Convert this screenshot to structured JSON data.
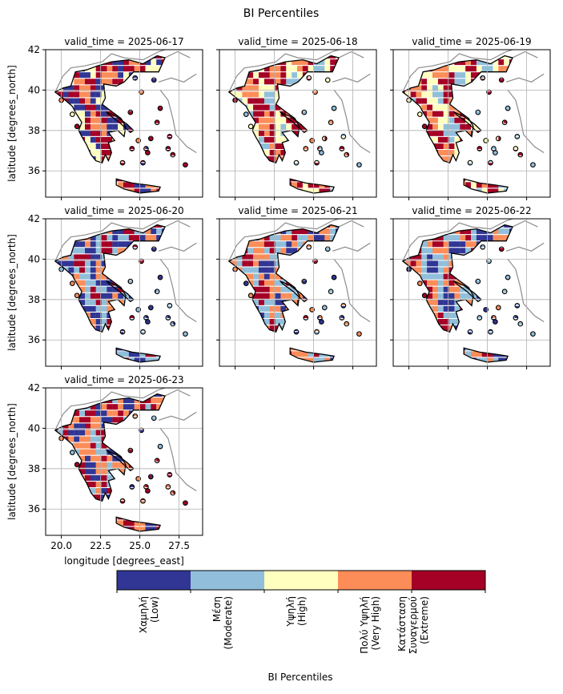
{
  "figure": {
    "title": "BI Percentiles",
    "colorbar_label": "BI Percentiles"
  },
  "chart_data": {
    "type": "heatmap",
    "title": "BI Percentiles",
    "xlabel": "longitude [degrees_east]",
    "ylabel": "latitude [degrees_north]",
    "xlim": [
      19.0,
      29.0
    ],
    "ylim": [
      34.7,
      42.0
    ],
    "xticks": [
      "20.0",
      "22.5",
      "25.0",
      "27.5"
    ],
    "yticks": [
      "36",
      "38",
      "40",
      "42"
    ],
    "grid": true,
    "panels": [
      {
        "label": "valid_time = 2025-06-17",
        "dominant": [
          3,
          4,
          0,
          2
        ]
      },
      {
        "label": "valid_time = 2025-06-18",
        "dominant": [
          3,
          4,
          2,
          1
        ]
      },
      {
        "label": "valid_time = 2025-06-19",
        "dominant": [
          3,
          4,
          2,
          1
        ]
      },
      {
        "label": "valid_time = 2025-06-20",
        "dominant": [
          3,
          0,
          1,
          4
        ]
      },
      {
        "label": "valid_time = 2025-06-21",
        "dominant": [
          0,
          3,
          1,
          4
        ]
      },
      {
        "label": "valid_time = 2025-06-22",
        "dominant": [
          0,
          1,
          3,
          4
        ]
      },
      {
        "label": "valid_time = 2025-06-23",
        "dominant": [
          0,
          3,
          4,
          1
        ]
      }
    ],
    "colorbar": {
      "categories": [
        {
          "label": "Χαμηλή\n(Low)",
          "color": "#313695"
        },
        {
          "label": "Μέση\n(Moderate)",
          "color": "#91bfdb"
        },
        {
          "label": "Υψηλή\n(High)",
          "color": "#ffffbf"
        },
        {
          "label": "Πολύ Υψηλή\n(Very High)",
          "color": "#fc8d59"
        },
        {
          "label": "Κατάσταση\nΣυναγερμού\n(Extreme)",
          "color": "#a50026"
        }
      ]
    }
  }
}
